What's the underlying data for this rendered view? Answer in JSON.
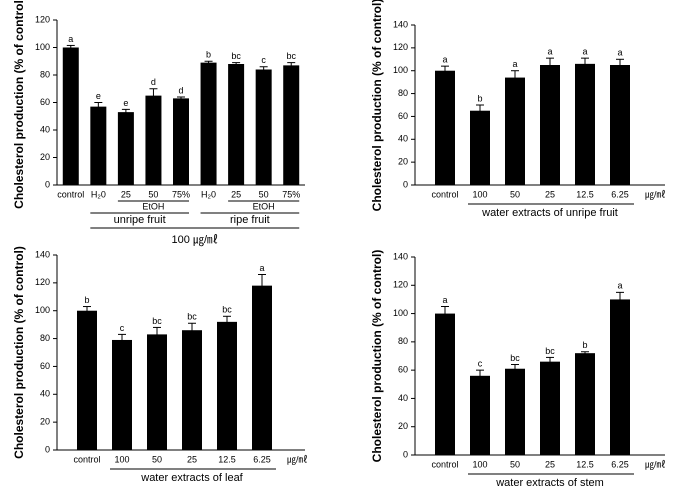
{
  "chart_data": [
    {
      "type": "bar",
      "ylabel": "Cholesterol production (% of control)",
      "categories": [
        "control",
        "H₂0",
        "25",
        "50",
        "75%",
        "H₂0",
        "25",
        "50",
        "75%"
      ],
      "values": [
        100,
        57,
        53,
        65,
        63,
        89,
        88,
        84,
        87
      ],
      "errors": [
        1.5,
        3,
        2,
        5,
        1,
        1,
        1,
        2,
        2
      ],
      "letters": [
        "a",
        "e",
        "e",
        "d",
        "d",
        "b",
        "bc",
        "c",
        "bc"
      ],
      "subgroup_labels": [
        "EtOH",
        "EtOH"
      ],
      "group_labels": [
        "unripe fruit",
        "ripe fruit"
      ],
      "xlabel": "100 ㎍/㎖",
      "color": "#000000",
      "ylim": [
        0,
        120
      ],
      "yticks": [
        0,
        20,
        40,
        60,
        80,
        100,
        120
      ]
    },
    {
      "type": "bar",
      "ylabel": "Cholesterol production (% of control)",
      "categories": [
        "control",
        "100",
        "50",
        "25",
        "12.5",
        "6.25"
      ],
      "values": [
        100,
        65,
        94,
        105,
        106,
        105
      ],
      "errors": [
        4,
        5,
        6,
        6,
        5,
        5
      ],
      "letters": [
        "a",
        "b",
        "a",
        "a",
        "a",
        "a"
      ],
      "unit": "㎍/㎖",
      "xlabel": "water extracts of unripe fruit",
      "color": "#000000",
      "ylim": [
        0,
        140
      ],
      "yticks": [
        0,
        20,
        40,
        60,
        80,
        100,
        120,
        140
      ]
    },
    {
      "type": "bar",
      "ylabel": "Cholesterol production (% of control)",
      "categories": [
        "control",
        "100",
        "50",
        "25",
        "12.5",
        "6.25"
      ],
      "values": [
        100,
        79,
        83,
        86,
        92,
        118
      ],
      "errors": [
        3,
        4,
        5,
        5,
        4,
        8
      ],
      "letters": [
        "b",
        "c",
        "bc",
        "bc",
        "bc",
        "a"
      ],
      "unit": "㎍/㎖",
      "xlabel": "water extracts of leaf",
      "color": "#000000",
      "ylim": [
        0,
        140
      ],
      "yticks": [
        0,
        20,
        40,
        60,
        80,
        100,
        120,
        140
      ]
    },
    {
      "type": "bar",
      "ylabel": "Cholesterol production (% of control)",
      "categories": [
        "control",
        "100",
        "50",
        "25",
        "12.5",
        "6.25"
      ],
      "values": [
        100,
        56,
        61,
        66,
        72,
        110
      ],
      "errors": [
        5,
        4,
        3,
        3,
        1,
        5
      ],
      "letters": [
        "a",
        "c",
        "bc",
        "bc",
        "b",
        "a"
      ],
      "unit": "㎍/㎖",
      "xlabel": "water extracts of stem",
      "color": "#000000",
      "ylim": [
        0,
        140
      ],
      "yticks": [
        0,
        20,
        40,
        60,
        80,
        100,
        120,
        140
      ]
    }
  ]
}
